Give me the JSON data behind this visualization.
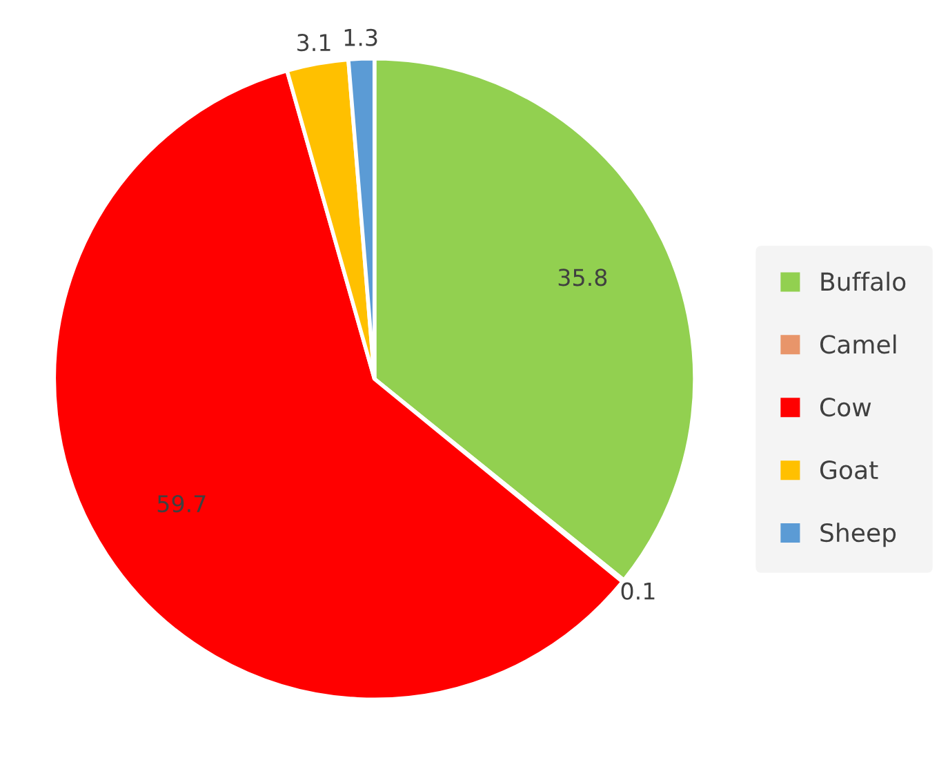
{
  "chart_data": {
    "type": "pie",
    "categories": [
      "Buffalo",
      "Camel",
      "Cow",
      "Goat",
      "Sheep"
    ],
    "values": [
      35.8,
      0.1,
      59.7,
      3.1,
      1.3
    ],
    "colors": [
      "#92d050",
      "#e8956a",
      "#ff0000",
      "#ffc000",
      "#5b9bd5"
    ],
    "data_labels": true,
    "legend": "right"
  }
}
